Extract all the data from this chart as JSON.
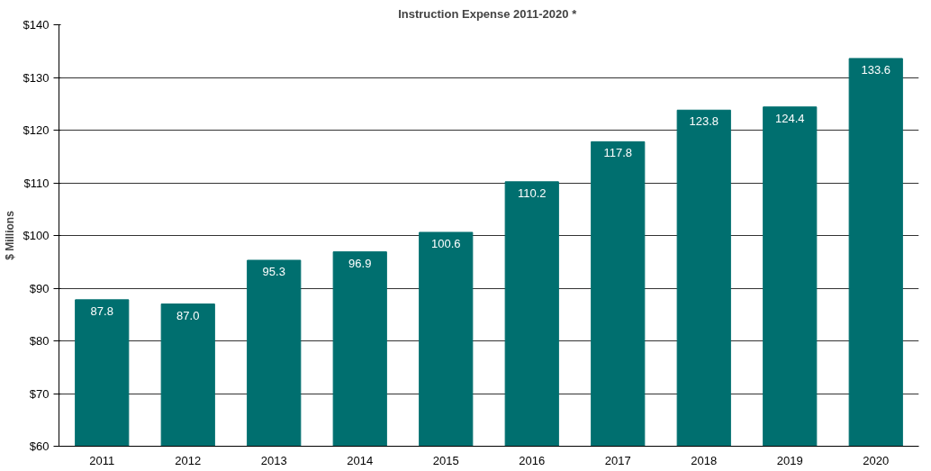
{
  "chart_data": {
    "type": "bar",
    "title": "Instruction Expense 2011-2020  *",
    "ylabel": "$ Millions",
    "categories": [
      "2011",
      "2012",
      "2013",
      "2014",
      "2015",
      "2016",
      "2017",
      "2018",
      "2019",
      "2020"
    ],
    "values": [
      87.8,
      87.0,
      95.3,
      96.9,
      100.6,
      110.2,
      117.8,
      123.8,
      124.4,
      133.6
    ],
    "value_labels": [
      "87.8",
      "87.0",
      "95.3",
      "96.9",
      "100.6",
      "110.2",
      "117.8",
      "123.8",
      "124.4",
      "133.6"
    ],
    "color": "#006f6f",
    "ylim": [
      60,
      140
    ],
    "yticks": [
      {
        "value": 60,
        "label": "$60"
      },
      {
        "value": 70,
        "label": "$70"
      },
      {
        "value": 80,
        "label": "$80"
      },
      {
        "value": 90,
        "label": "$90"
      },
      {
        "value": 100,
        "label": "$100"
      },
      {
        "value": 110,
        "label": "$110"
      },
      {
        "value": 120,
        "label": "$120"
      },
      {
        "value": 130,
        "label": "$130"
      },
      {
        "value": 140,
        "label": "$140"
      }
    ],
    "grid": "y"
  }
}
